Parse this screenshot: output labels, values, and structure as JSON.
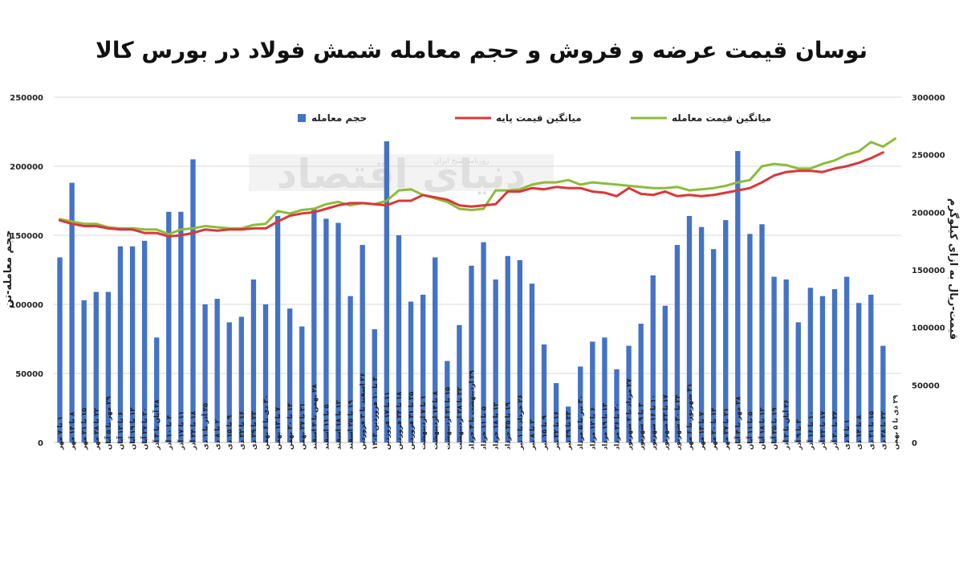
{
  "chart_data": {
    "type": "bar+line",
    "title": "نوسان قیمت عرضه و فروش و حجم معامله شمش فولاد در بورس کالا",
    "ylabel_left": "حجم معامله-تن",
    "ylabel_right": "قیمت-ریال به ازای کیلوگرم",
    "ylim_left": [
      0,
      250000
    ],
    "ylim_right": [
      0,
      300000
    ],
    "yticks_left": [
      "0",
      "50000",
      "100000",
      "150000",
      "200000",
      "250000"
    ],
    "yticks_right": [
      "0",
      "50000",
      "100000",
      "150000",
      "200000",
      "250000",
      "300000"
    ],
    "grid": "horizontal",
    "legend_position": "top",
    "legend": [
      "حجم معامله",
      "میانگین قیمت پایه",
      "میانگین قیمت معامله"
    ],
    "colors": {
      "bars": "#4472c4",
      "base_price": "#d9383a",
      "deal_price": "#8dbb3c"
    },
    "categories": [
      "۱ تا ۷ مهر",
      "۸ تا ۱۴ مهر",
      "۱۵ تا ۲۱ مهر",
      "۲۲ تا ۲۸ مهر",
      "۲۹ مهر تا ۵ آبان",
      "۶ تا ۱۲ آبان",
      "۱۳ تا ۱۹ آبان",
      "۲۰ تا ۲۷ آبان",
      "۲۸ آبان تا ۳ آذر",
      "۴ تا ۱۰ آذر",
      "۱۱ تا ۱۷ آذر",
      "۱۸ تا ۲۴ آذر",
      "۲۵ آذر تا ۱ دی",
      "۲ تا ۸ دی",
      "۹ تا ۱۵ دی",
      "۱۶ تا ۲۲ دی",
      "۲۳ تا ۲۹ دی",
      "۳۰ دی تا ۶ بهمن",
      "۷ تا ۱۳ بهمن",
      "۱۴ تا ۲۰ بهمن",
      "۲۱ تا ۲۷ بهمن",
      "۲۸ بهمن تا ۴ اسفند",
      "۵ تا ۱۱ اسفند",
      "۱۲ تا ۱۸ اسفند",
      "۱۹ تا ۲۵ اسفند",
      "۲۶ اسفند تا ۳ فروردین",
      "۴ تا ۱۰ فروردین ۱۴۰۳",
      "۱۱ تا ۱۷ فروردین",
      "۱۸ تا ۲۴ فروردین",
      "۲۵ تا ۳۱ فروردین",
      "۱ تا ۷ اردیبهشت",
      "۸ تا ۱۴ اردیبهشت",
      "۱۵ تا ۲۱ اردیبهشت",
      "۲۲ تا ۲۸ اردیبهشت",
      "۲۹ اردیبهشت تا ۴ خرداد",
      "۵ تا ۱۱ خرداد",
      "۱۲ تا ۱۸ خرداد",
      "۱۹ تا ۲۵ خرداد",
      "۲۶ خرداد تا ۱ تیر",
      "۲ تا ۸ تیر",
      "۹ تا ۱۵ تیر",
      "۱۶ تا ۲۲ تیر",
      "۲۳ تا ۲۹ تیر",
      "۳۰ تیر تا ۵ مرداد",
      "۶ تا ۱۲ مرداد",
      "۱۳ تا ۱۹ مرداد",
      "۲۰ تا ۲۶ مرداد",
      "۲۷ مرداد تا ۲ شهریور",
      "۳ تا ۹ شهریور",
      "۱۰ تا ۱۶ شهریور",
      "۱۷ تا ۲۳ شهریور",
      "۲۴ تا ۳۰ شهریور",
      "۳۱ شهریور تا ۶ مهر",
      "۷ تا ۱۳ مهر",
      "۱۴ تا ۲۰ مهر",
      "۲۱ تا ۲۷ مهر",
      "۲۸ مهر تا ۴ آبان",
      "۵ تا ۱۱ آبان",
      "۱۲ تا ۱۸ آبان",
      "۱۹ تا ۲۵ آبان",
      "۲۶ آبان تا ۲ آذر",
      "۳ تا ۹ آذر",
      "۱۰ تا ۱۶ آذر",
      "۱۷ تا ۲۳ آذر",
      "۲۴ تا ۳۰ آذر",
      "۱ تا ۷ دی",
      "۸ تا ۱۴ دی",
      "۱۵ تا ۲۱ دی",
      "۲۲ تا ۲۸ دی",
      "۲۹ دی تا ۵ بهمن"
    ],
    "series": [
      {
        "name": "حجم معامله",
        "type": "bar",
        "axis": "left",
        "values": [
          134000,
          188000,
          103000,
          109000,
          109000,
          142000,
          142000,
          146000,
          76000,
          167000,
          167000,
          205000,
          100000,
          104000,
          87000,
          91000,
          118000,
          100000,
          164000,
          97000,
          84000,
          170000,
          162000,
          159000,
          106000,
          143000,
          82000,
          218000,
          150000,
          102000,
          107000,
          134000,
          59000,
          85000,
          128000,
          145000,
          118000,
          135000,
          132000,
          115000,
          71000,
          43000,
          26000,
          55000,
          73000,
          76000,
          53000,
          70000,
          86000,
          121000,
          99000,
          143000,
          164000,
          156000,
          140000,
          161000,
          211000,
          151000,
          158000,
          120000,
          118000,
          87000,
          112000,
          106000,
          111000,
          120000,
          101000,
          107000,
          70000,
          0
        ]
      },
      {
        "name": "میانگین قیمت پایه",
        "type": "line",
        "axis": "right",
        "values": [
          193000,
          190000,
          188000,
          188000,
          186000,
          185000,
          185000,
          182000,
          182000,
          179000,
          180000,
          182000,
          185000,
          184000,
          185000,
          185000,
          186000,
          186000,
          192000,
          197000,
          199000,
          200000,
          203000,
          206000,
          208000,
          208000,
          207000,
          206000,
          210000,
          210000,
          215000,
          213000,
          211000,
          206000,
          205000,
          206000,
          207000,
          218000,
          218000,
          221000,
          220000,
          222000,
          221000,
          221000,
          218000,
          217000,
          214000,
          221000,
          216000,
          215000,
          218000,
          214000,
          215000,
          214000,
          215000,
          217000,
          219000,
          221000,
          226000,
          232000,
          235000,
          236000,
          236000,
          235000,
          238000,
          240000,
          243000,
          247000,
          252000,
          0
        ]
      },
      {
        "name": "میانگین قیمت معامله",
        "type": "line",
        "axis": "right",
        "values": [
          194000,
          192000,
          190000,
          190000,
          187000,
          186000,
          186000,
          185000,
          185000,
          181000,
          185000,
          186000,
          188000,
          187000,
          186000,
          186000,
          189000,
          190000,
          201000,
          199000,
          202000,
          203000,
          207000,
          209000,
          206000,
          208000,
          207000,
          210000,
          219000,
          220000,
          215000,
          212000,
          209000,
          203000,
          202000,
          203000,
          219000,
          219000,
          220000,
          224000,
          226000,
          226000,
          228000,
          224000,
          226000,
          225000,
          224000,
          223000,
          222000,
          221000,
          221000,
          222000,
          219000,
          220000,
          221000,
          223000,
          226000,
          228000,
          240000,
          242000,
          241000,
          238000,
          238000,
          242000,
          245000,
          250000,
          253000,
          261000,
          257000,
          264000
        ]
      }
    ]
  },
  "watermark": {
    "main": "دنیای اقتصاد",
    "small": "روزنامه صبح ایران"
  }
}
